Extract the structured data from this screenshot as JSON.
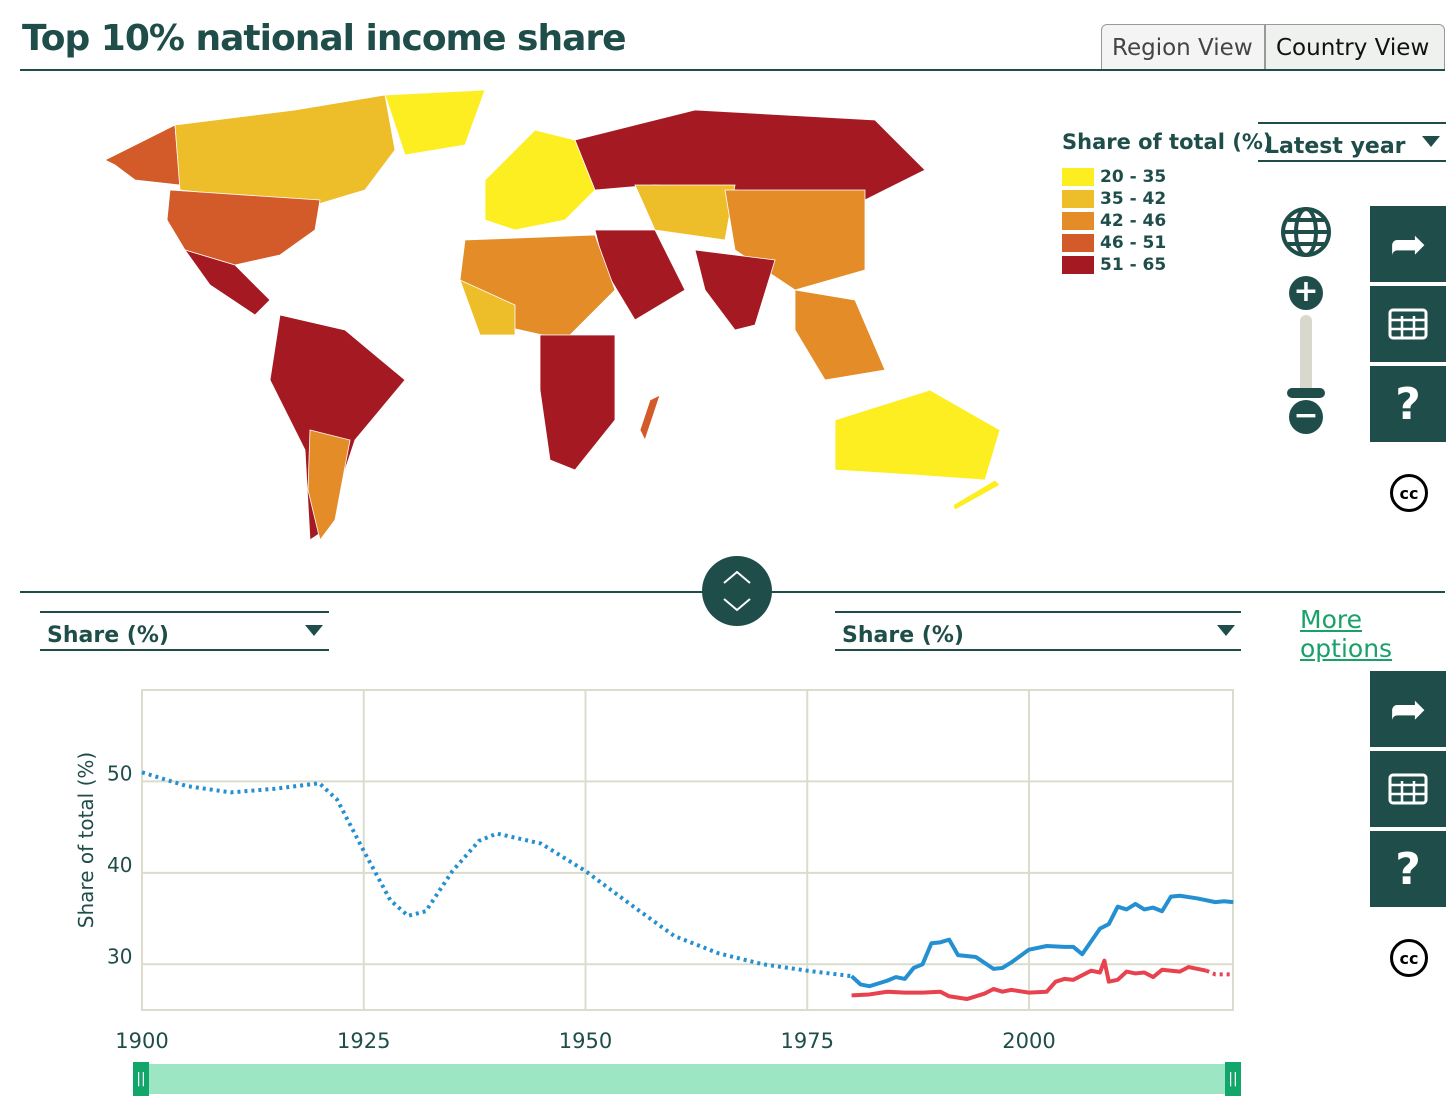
{
  "header": {
    "title": "Top 10% national income share",
    "tabs": [
      "Region View",
      "Country View"
    ],
    "active_tab": "Country View"
  },
  "map": {
    "legend_title": "Share of total (%)",
    "legend": [
      {
        "label": "20 - 35",
        "color": "#fcee21"
      },
      {
        "label": "35 - 42",
        "color": "#eebd2a"
      },
      {
        "label": "42 - 46",
        "color": "#e38c28"
      },
      {
        "label": "46 - 51",
        "color": "#d35a29"
      },
      {
        "label": "51 - 65",
        "color": "#a51a22"
      }
    ],
    "year_select": "Latest year",
    "zoom_controls": {
      "globe": "globe-icon",
      "zoom_in": "+",
      "zoom_out": "−"
    }
  },
  "side_buttons": {
    "share": "share-icon",
    "table": "table-icon",
    "help": "?",
    "license": "cc"
  },
  "controls": {
    "left_select": "Share (%)",
    "right_select": "Share (%)",
    "more_options": "More options"
  },
  "chart_data": {
    "type": "line",
    "ylabel": "Share of total (%)",
    "xlabel": "",
    "xlim": [
      1900,
      2023
    ],
    "ylim": [
      25,
      60
    ],
    "x_ticks": [
      "1900",
      "1925",
      "1950",
      "1975",
      "2000"
    ],
    "y_ticks": [
      "30",
      "40",
      "50"
    ],
    "grid": true,
    "series": [
      {
        "name": "series-blue",
        "color": "#2490d2",
        "dotted_before": [
          [
            1900,
            51
          ],
          [
            1905,
            49.5
          ],
          [
            1910,
            48.8
          ],
          [
            1915,
            49.2
          ],
          [
            1920,
            49.8
          ],
          [
            1922,
            48
          ],
          [
            1925,
            42.4
          ],
          [
            1928,
            37
          ],
          [
            1930,
            35.3
          ],
          [
            1932,
            35.8
          ],
          [
            1935,
            40.2
          ],
          [
            1938,
            43.5
          ],
          [
            1940,
            44.3
          ],
          [
            1945,
            43.2
          ],
          [
            1950,
            40.2
          ],
          [
            1955,
            36.6
          ],
          [
            1960,
            33.1
          ],
          [
            1965,
            31.2
          ],
          [
            1970,
            30
          ],
          [
            1975,
            29.3
          ],
          [
            1980,
            28.7
          ]
        ],
        "solid": [
          [
            1980,
            28.7
          ],
          [
            1981,
            27.8
          ],
          [
            1982,
            27.6
          ],
          [
            1984,
            28.2
          ],
          [
            1985,
            28.6
          ],
          [
            1986,
            28.4
          ],
          [
            1987,
            29.6
          ],
          [
            1988,
            30
          ],
          [
            1989,
            32.3
          ],
          [
            1990,
            32.4
          ],
          [
            1991,
            32.7
          ],
          [
            1992,
            31
          ],
          [
            1994,
            30.8
          ],
          [
            1996,
            29.5
          ],
          [
            1997,
            29.6
          ],
          [
            1998,
            30.2
          ],
          [
            2000,
            31.6
          ],
          [
            2002,
            32
          ],
          [
            2004,
            31.9
          ],
          [
            2005,
            31.9
          ],
          [
            2006,
            31.1
          ],
          [
            2008,
            33.9
          ],
          [
            2009,
            34.4
          ],
          [
            2010,
            36.3
          ],
          [
            2011,
            36
          ],
          [
            2012,
            36.6
          ],
          [
            2013,
            36
          ],
          [
            2014,
            36.2
          ],
          [
            2015,
            35.8
          ],
          [
            2016,
            37.4
          ],
          [
            2017,
            37.5
          ],
          [
            2019,
            37.2
          ],
          [
            2021,
            36.8
          ],
          [
            2022,
            36.9
          ],
          [
            2023,
            36.8
          ]
        ],
        "dotted_after": [
          [
            2023,
            36.8
          ],
          [
            2023,
            36.8
          ]
        ]
      },
      {
        "name": "series-red",
        "color": "#e8424f",
        "solid": [
          [
            1980,
            26.6
          ],
          [
            1982,
            26.7
          ],
          [
            1984,
            27
          ],
          [
            1986,
            26.9
          ],
          [
            1988,
            26.9
          ],
          [
            1990,
            27
          ],
          [
            1991,
            26.5
          ],
          [
            1993,
            26.2
          ],
          [
            1995,
            26.8
          ],
          [
            1996,
            27.3
          ],
          [
            1997,
            27
          ],
          [
            1998,
            27.2
          ],
          [
            2000,
            26.9
          ],
          [
            2002,
            27
          ],
          [
            2003,
            28.1
          ],
          [
            2004,
            28.4
          ],
          [
            2005,
            28.3
          ],
          [
            2006,
            28.8
          ],
          [
            2007,
            29.3
          ],
          [
            2008,
            29.1
          ],
          [
            2008.5,
            30.4
          ],
          [
            2009,
            28.1
          ],
          [
            2010,
            28.3
          ],
          [
            2011,
            29.2
          ],
          [
            2012,
            29
          ],
          [
            2013,
            29.1
          ],
          [
            2014,
            28.6
          ],
          [
            2015,
            29.4
          ],
          [
            2017,
            29.2
          ],
          [
            2018,
            29.7
          ],
          [
            2020,
            29.3
          ]
        ],
        "dotted_after": [
          [
            2020,
            29.3
          ],
          [
            2021,
            28.9
          ],
          [
            2023,
            28.9
          ]
        ]
      }
    ]
  }
}
